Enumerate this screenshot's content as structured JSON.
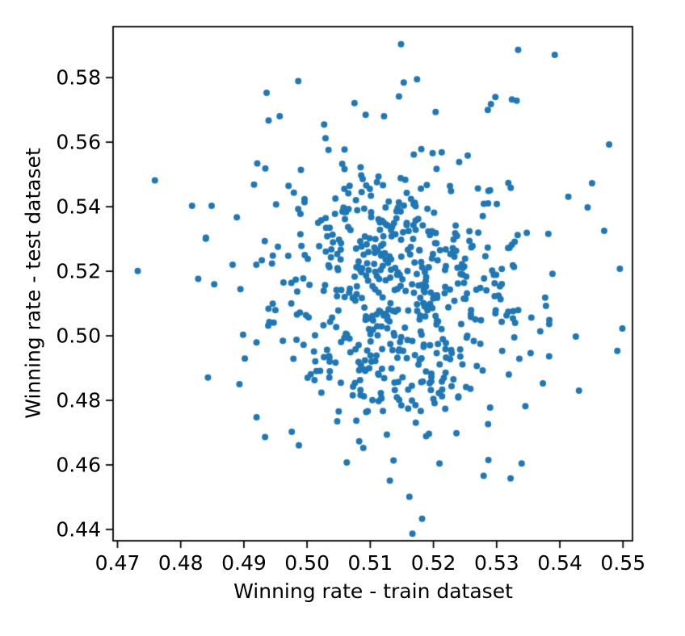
{
  "figure": {
    "background_color": "#ffffff",
    "spine_color": "#000000",
    "tick_color": "#000000",
    "text_color": "#000000"
  },
  "chart_data": {
    "type": "scatter",
    "title": "",
    "xlabel": "Winning rate - train dataset",
    "ylabel": "Winning rate - test dataset",
    "xlim": [
      0.4693,
      0.5515
    ],
    "ylim": [
      0.4365,
      0.5958
    ],
    "xticks": [
      0.47,
      0.48,
      0.49,
      0.5,
      0.51,
      0.52,
      0.53,
      0.54,
      0.55
    ],
    "xtick_labels": [
      "0.47",
      "0.48",
      "0.49",
      "0.50",
      "0.51",
      "0.52",
      "0.53",
      "0.54",
      "0.55"
    ],
    "yticks": [
      0.44,
      0.46,
      0.48,
      0.5,
      0.52,
      0.54,
      0.56,
      0.58
    ],
    "ytick_labels": [
      "0.44",
      "0.46",
      "0.48",
      "0.50",
      "0.52",
      "0.54",
      "0.56",
      "0.58"
    ],
    "grid": false,
    "legend": null,
    "marker": {
      "shape": "circle",
      "color": "#1f77b4",
      "radius_px": 4.0
    },
    "n_points": 620,
    "distribution": {
      "kind": "gaussian-estimated-from-pixels",
      "x_mean": 0.5145,
      "x_std": 0.0113,
      "y_mean": 0.515,
      "y_std": 0.0243,
      "seed": 12
    },
    "measured_points": [
      [
        0.4732,
        0.5201
      ],
      [
        0.5334,
        0.5886
      ],
      [
        0.5182,
        0.4433
      ],
      [
        0.5478,
        0.5593
      ],
      [
        0.5298,
        0.574
      ],
      [
        0.5291,
        0.5718
      ],
      [
        0.5286,
        0.57
      ],
      [
        0.5153,
        0.5785
      ],
      [
        0.5174,
        0.5795
      ],
      [
        0.4936,
        0.5753
      ],
      [
        0.4818,
        0.5403
      ],
      [
        0.4849,
        0.5403
      ],
      [
        0.5451,
        0.5473
      ],
      [
        0.5444,
        0.5398
      ],
      [
        0.5495,
        0.5208
      ],
      [
        0.5499,
        0.5023
      ],
      [
        0.5491,
        0.4953
      ],
      [
        0.4987,
        0.4661
      ],
      [
        0.4893,
        0.485
      ],
      [
        0.5131,
        0.4551
      ],
      [
        0.5027,
        0.5655
      ]
    ]
  }
}
